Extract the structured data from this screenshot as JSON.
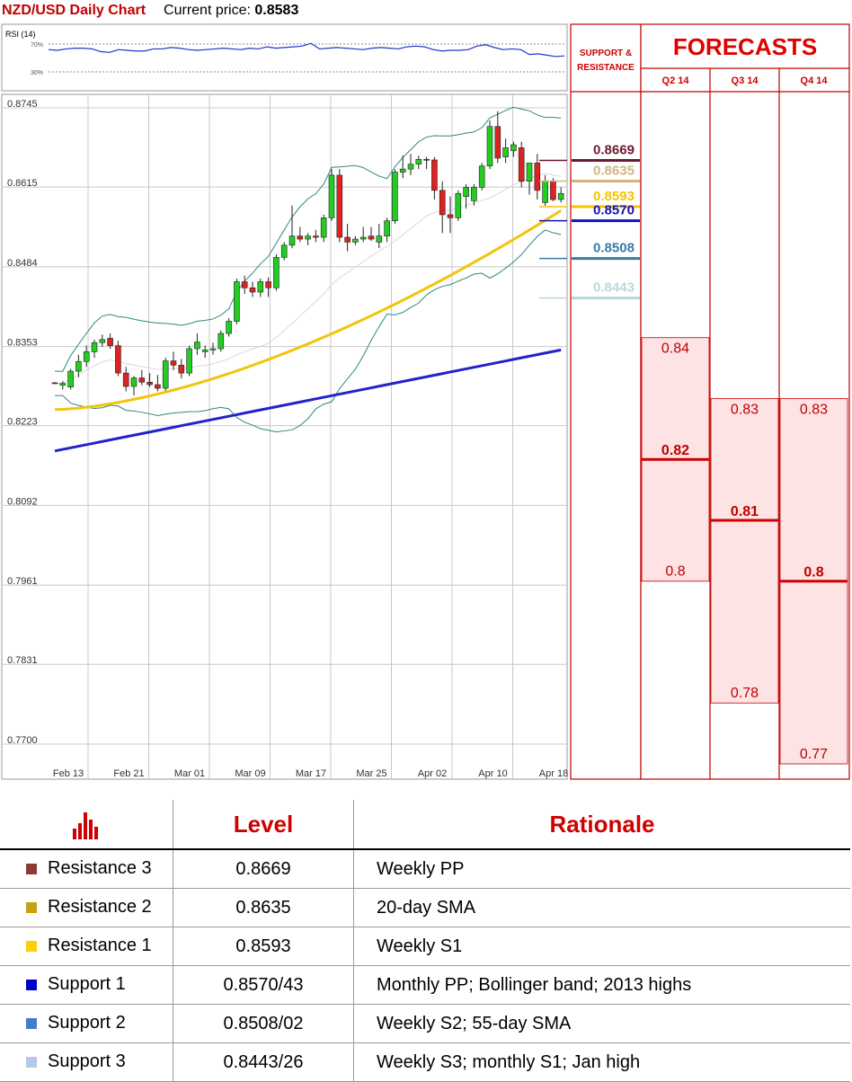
{
  "header": {
    "title": "NZD/USD Daily Chart",
    "price_label": "Current price:",
    "price_value": "0.8583"
  },
  "rsi": {
    "label": "RSI (14)",
    "levels": [
      "70%",
      "30%"
    ],
    "values": [
      62,
      61,
      63,
      64,
      64,
      63,
      59,
      58,
      62,
      61,
      60,
      60,
      63,
      63,
      65,
      64,
      62,
      61,
      62,
      63,
      64,
      63,
      62,
      64,
      63,
      66,
      64,
      65,
      66,
      67,
      71,
      63,
      64,
      65,
      64,
      63,
      62,
      64,
      65,
      64,
      63,
      66,
      67,
      66,
      62,
      60,
      61,
      61,
      62,
      67,
      69,
      65,
      62,
      63,
      62,
      55,
      56,
      54,
      52,
      53
    ]
  },
  "chart_data": {
    "type": "candlestick",
    "title": "NZD/USD Daily Chart",
    "x_ticks": [
      "Feb 13",
      "Feb 21",
      "Mar 01",
      "Mar 09",
      "Mar 17",
      "Mar 25",
      "Apr 02",
      "Apr 10",
      "Apr 18"
    ],
    "y_ticks": [
      "0.8745",
      "0.8615",
      "0.8484",
      "0.8353",
      "0.8223",
      "0.8092",
      "0.7961",
      "0.7831",
      "0.7700"
    ],
    "ylim": [
      0.77,
      0.8745
    ],
    "candles": [
      [
        0.8289,
        0.829,
        0.8287,
        0.8288
      ],
      [
        0.8285,
        0.8292,
        0.8278,
        0.8288
      ],
      [
        0.8282,
        0.8312,
        0.8278,
        0.8308
      ],
      [
        0.8308,
        0.8335,
        0.8298,
        0.8324
      ],
      [
        0.8324,
        0.835,
        0.8315,
        0.834
      ],
      [
        0.834,
        0.836,
        0.833,
        0.8355
      ],
      [
        0.8355,
        0.8368,
        0.8348,
        0.836
      ],
      [
        0.8362,
        0.837,
        0.8345,
        0.835
      ],
      [
        0.835,
        0.8358,
        0.83,
        0.8305
      ],
      [
        0.8305,
        0.8315,
        0.8275,
        0.8283
      ],
      [
        0.8283,
        0.83,
        0.8268,
        0.8297
      ],
      [
        0.8297,
        0.831,
        0.8285,
        0.829
      ],
      [
        0.829,
        0.8305,
        0.8282,
        0.8286
      ],
      [
        0.8286,
        0.8302,
        0.8275,
        0.828
      ],
      [
        0.828,
        0.833,
        0.8276,
        0.8325
      ],
      [
        0.8325,
        0.834,
        0.831,
        0.8318
      ],
      [
        0.8318,
        0.8328,
        0.8296,
        0.8305
      ],
      [
        0.8305,
        0.835,
        0.83,
        0.8345
      ],
      [
        0.8345,
        0.837,
        0.8335,
        0.8356
      ],
      [
        0.834,
        0.835,
        0.833,
        0.8343
      ],
      [
        0.8343,
        0.8355,
        0.8335,
        0.8345
      ],
      [
        0.8345,
        0.8375,
        0.834,
        0.837
      ],
      [
        0.837,
        0.8395,
        0.8365,
        0.839
      ],
      [
        0.839,
        0.846,
        0.8385,
        0.8455
      ],
      [
        0.8455,
        0.8465,
        0.8435,
        0.8445
      ],
      [
        0.8445,
        0.8455,
        0.843,
        0.8438
      ],
      [
        0.8438,
        0.846,
        0.843,
        0.8455
      ],
      [
        0.8455,
        0.8462,
        0.843,
        0.8445
      ],
      [
        0.8445,
        0.85,
        0.844,
        0.8495
      ],
      [
        0.8495,
        0.852,
        0.849,
        0.8515
      ],
      [
        0.8515,
        0.858,
        0.851,
        0.853
      ],
      [
        0.853,
        0.8545,
        0.852,
        0.8525
      ],
      [
        0.8525,
        0.8535,
        0.8515,
        0.853
      ],
      [
        0.853,
        0.854,
        0.852,
        0.8528
      ],
      [
        0.8528,
        0.8565,
        0.852,
        0.856
      ],
      [
        0.856,
        0.864,
        0.8555,
        0.863
      ],
      [
        0.863,
        0.864,
        0.852,
        0.8528
      ],
      [
        0.8528,
        0.855,
        0.8505,
        0.852
      ],
      [
        0.852,
        0.853,
        0.8515,
        0.8525
      ],
      [
        0.8525,
        0.8545,
        0.852,
        0.8528
      ],
      [
        0.853,
        0.8545,
        0.8522,
        0.8525
      ],
      [
        0.852,
        0.855,
        0.851,
        0.853
      ],
      [
        0.853,
        0.856,
        0.852,
        0.8555
      ],
      [
        0.8555,
        0.864,
        0.855,
        0.8635
      ],
      [
        0.8635,
        0.8662,
        0.8625,
        0.864
      ],
      [
        0.864,
        0.8665,
        0.863,
        0.8648
      ],
      [
        0.8648,
        0.8662,
        0.864,
        0.8656
      ],
      [
        0.8656,
        0.866,
        0.864,
        0.8655
      ],
      [
        0.8655,
        0.866,
        0.859,
        0.8605
      ],
      [
        0.8605,
        0.862,
        0.8535,
        0.8565
      ],
      [
        0.8565,
        0.8595,
        0.8535,
        0.856
      ],
      [
        0.856,
        0.8605,
        0.8555,
        0.86
      ],
      [
        0.8595,
        0.8615,
        0.8575,
        0.861
      ],
      [
        0.8588,
        0.8615,
        0.858,
        0.861
      ],
      [
        0.861,
        0.865,
        0.8605,
        0.8645
      ],
      [
        0.8645,
        0.872,
        0.864,
        0.871
      ],
      [
        0.871,
        0.8735,
        0.865,
        0.8658
      ],
      [
        0.866,
        0.869,
        0.865,
        0.8675
      ],
      [
        0.867,
        0.8685,
        0.866,
        0.868
      ],
      [
        0.8675,
        0.8685,
        0.861,
        0.862
      ],
      [
        0.862,
        0.865,
        0.8598,
        0.865
      ],
      [
        0.865,
        0.8665,
        0.859,
        0.8605
      ],
      [
        0.8585,
        0.863,
        0.858,
        0.862
      ],
      [
        0.862,
        0.8625,
        0.8587,
        0.859
      ],
      [
        0.859,
        0.861,
        0.8585,
        0.86
      ]
    ],
    "sma200": [
      [
        0.8175,
        0.825
      ],
      [
        0.83,
        0.8275
      ],
      [
        0.837,
        0.8318
      ]
    ],
    "levels_chart": [
      {
        "value": "0.8669",
        "color": "#6a1b2d"
      },
      {
        "value": "0.8635",
        "color": "#d2b483"
      },
      {
        "value": "0.8593",
        "color": "#f5c400"
      },
      {
        "value": "0.8570",
        "color": "#1010c0"
      },
      {
        "value": "0.8508",
        "color": "#3a7aaa"
      },
      {
        "value": "0.8443",
        "color": "#b8d8dc"
      }
    ]
  },
  "support_resistance": {
    "header_line1": "SUPPORT &",
    "header_line2": "RESISTANCE"
  },
  "forecasts": {
    "title": "FORECASTS",
    "quarters": [
      {
        "label": "Q2 14",
        "high": "0.84",
        "mid": "0.82",
        "low": "0.8",
        "high_v": 0.84,
        "mid_v": 0.82,
        "low_v": 0.8
      },
      {
        "label": "Q3 14",
        "high": "0.83",
        "mid": "0.81",
        "low": "0.78",
        "high_v": 0.83,
        "mid_v": 0.81,
        "low_v": 0.78
      },
      {
        "label": "Q4 14",
        "high": "0.83",
        "mid": "0.8",
        "low": "0.77",
        "high_v": 0.83,
        "mid_v": 0.8,
        "low_v": 0.77
      }
    ]
  },
  "table": {
    "col_level": "Level",
    "col_rationale": "Rationale",
    "rows": [
      {
        "name": "Resistance 3",
        "level": "0.8669",
        "rationale": "Weekly PP",
        "color": "#8b3a3a"
      },
      {
        "name": "Resistance 2",
        "level": "0.8635",
        "rationale": "20-day SMA",
        "color": "#c8a010"
      },
      {
        "name": "Resistance 1",
        "level": "0.8593",
        "rationale": "Weekly S1",
        "color": "#ffd000"
      },
      {
        "name": "Support 1",
        "level": "0.8570/43",
        "rationale": "Monthly PP; Bollinger band; 2013 highs",
        "color": "#0000c8"
      },
      {
        "name": "Support 2",
        "level": "0.8508/02",
        "rationale": "Weekly S2; 55-day SMA",
        "color": "#3f7fc4"
      },
      {
        "name": "Support 3",
        "level": "0.8443/26",
        "rationale": "Weekly S3; monthly S1; Jan high",
        "color": "#b4c8e8"
      }
    ]
  }
}
